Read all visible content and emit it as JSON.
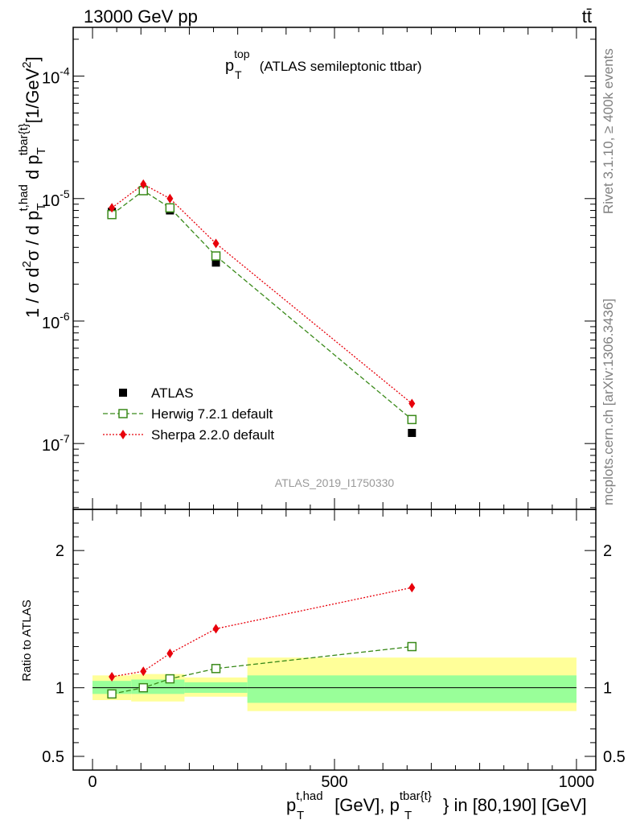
{
  "header": {
    "energy_label": "13000 GeV pp",
    "process_label": "tt̄"
  },
  "side": {
    "rivet_label": "Rivet 3.1.10, ≥ 400k events",
    "mcplots_label": "mcplots.cern.ch [arXiv:1306.3436]"
  },
  "plot_title": {
    "main": "p",
    "sub": "T",
    "sup": "top",
    "rest": " (ATLAS semileptonic ttbar)"
  },
  "analysis_id": "ATLAS_2019_I1750330",
  "main_ylabel": {
    "prefix": "1 / σ d",
    "sup2": "2",
    "mid": "σ / d p",
    "sub1": "T",
    "sup1": "t,had",
    "mid2": " d p",
    "sub2": "T",
    "sup3": "tbar{t}",
    "unit": "[1/GeV",
    "unit_sup": "2",
    "unit_end": "]"
  },
  "ratio_ylabel": "Ratio to ATLAS",
  "xlabel": {
    "p1": "p",
    "sub1": "T",
    "sup1": "t,had",
    "mid": " [GeV], p",
    "sub2": "T",
    "sup2": "tbar{t}",
    "end": "} in [80,190] [GeV]"
  },
  "colors": {
    "data": "#000000",
    "herwig": "#3a8a1a",
    "sherpa": "#e8000b",
    "band_outer": "#ffff99",
    "band_inner": "#99ff99"
  },
  "chart_data": {
    "type": "scatter",
    "x_axis": {
      "range": [
        -40,
        1040
      ],
      "ticks": [
        0,
        500,
        1000
      ],
      "tick_labels": [
        "0",
        "500",
        "1000"
      ]
    },
    "main_y_axis": {
      "scale": "log",
      "range": [
        2.9e-08,
        0.00025
      ],
      "tick_labels": [
        "10^-7",
        "10^-6",
        "10^-5",
        "10^-4"
      ]
    },
    "ratio_y_axis": {
      "range": [
        0.4,
        2.3
      ],
      "tick_labels": [
        "0.5",
        "1",
        "2"
      ],
      "tick_values": [
        0.5,
        1,
        2
      ]
    },
    "legend": {
      "placement": "lower-left",
      "entries": [
        "ATLAS",
        "Herwig 7.2.1 default",
        "Sherpa 2.2.0 default"
      ]
    },
    "series": [
      {
        "name": "ATLAS",
        "marker": "square-filled",
        "x": [
          40,
          105,
          160,
          255,
          660
        ],
        "y": [
          7.8e-06,
          1.16e-05,
          8e-06,
          3e-06,
          1.22e-07
        ]
      },
      {
        "name": "Herwig 7.2.1 default",
        "marker": "square-open",
        "line": "dashed",
        "x": [
          40,
          105,
          160,
          255,
          660
        ],
        "y": [
          7.4e-06,
          1.16e-05,
          8.4e-06,
          3.4e-06,
          1.57e-07
        ],
        "ratio": [
          0.955,
          1.0,
          1.065,
          1.14,
          1.3
        ]
      },
      {
        "name": "Sherpa 2.2.0 default",
        "marker": "diamond",
        "line": "dotted",
        "x": [
          40,
          105,
          160,
          255,
          660
        ],
        "y": [
          8.4e-06,
          1.31e-05,
          1e-05,
          4.3e-06,
          2.12e-07
        ],
        "ratio": [
          1.08,
          1.12,
          1.25,
          1.43,
          1.73
        ]
      }
    ],
    "ratio_bands": [
      {
        "x": [
          0,
          80
        ],
        "outer": [
          0.91,
          1.09
        ],
        "inner": [
          0.955,
          1.05
        ]
      },
      {
        "x": [
          80,
          190
        ],
        "outer": [
          0.9,
          1.1
        ],
        "inner": [
          0.955,
          1.06
        ]
      },
      {
        "x": [
          190,
          320
        ],
        "outer": [
          0.935,
          1.075
        ],
        "inner": [
          0.963,
          1.04
        ]
      },
      {
        "x": [
          320,
          1000
        ],
        "outer": [
          0.83,
          1.22
        ],
        "inner": [
          0.89,
          1.09
        ]
      }
    ]
  }
}
